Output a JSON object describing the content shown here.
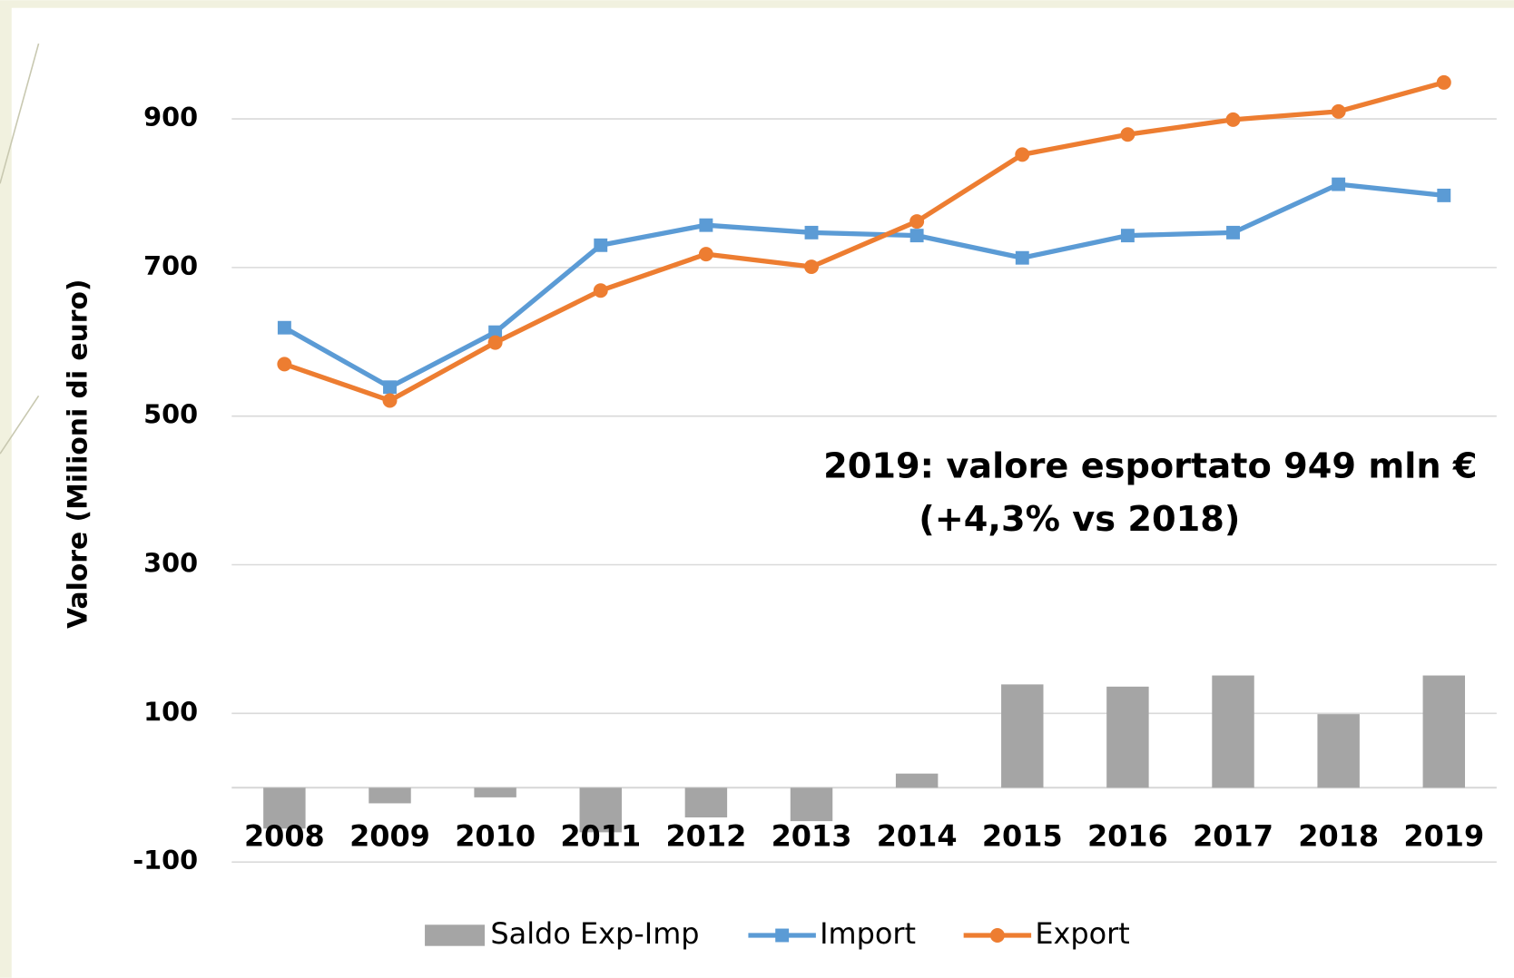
{
  "chart_data": {
    "type": "combo",
    "y_label": "Valore (Milioni di euro)",
    "annotations": [
      "2019: valore esportato 949 mln €",
      "(+4,3% vs 2018)"
    ],
    "categories": [
      "2008",
      "2009",
      "2010",
      "2011",
      "2012",
      "2013",
      "2014",
      "2015",
      "2016",
      "2017",
      "2018",
      "2019"
    ],
    "series": [
      {
        "name": "Saldo Exp-Imp",
        "kind": "bar",
        "color": "#a5a5a5",
        "values": [
          -55,
          -21,
          -13,
          -60,
          -40,
          -45,
          19,
          139,
          136,
          151,
          99,
          151
        ]
      },
      {
        "name": "Import",
        "kind": "line",
        "marker": "square",
        "color": "#5b9bd5",
        "values": [
          619,
          539,
          613,
          730,
          757,
          747,
          743,
          713,
          743,
          747,
          812,
          797
        ]
      },
      {
        "name": "Export",
        "kind": "line",
        "marker": "circle",
        "color": "#ed7d31",
        "values": [
          570,
          521,
          599,
          669,
          718,
          701,
          762,
          852,
          879,
          899,
          910,
          949
        ]
      }
    ],
    "ylim": [
      -100,
      1000
    ],
    "yticks": [
      -100,
      100,
      300,
      500,
      700,
      900
    ],
    "grid": true,
    "legend": "bottom"
  }
}
